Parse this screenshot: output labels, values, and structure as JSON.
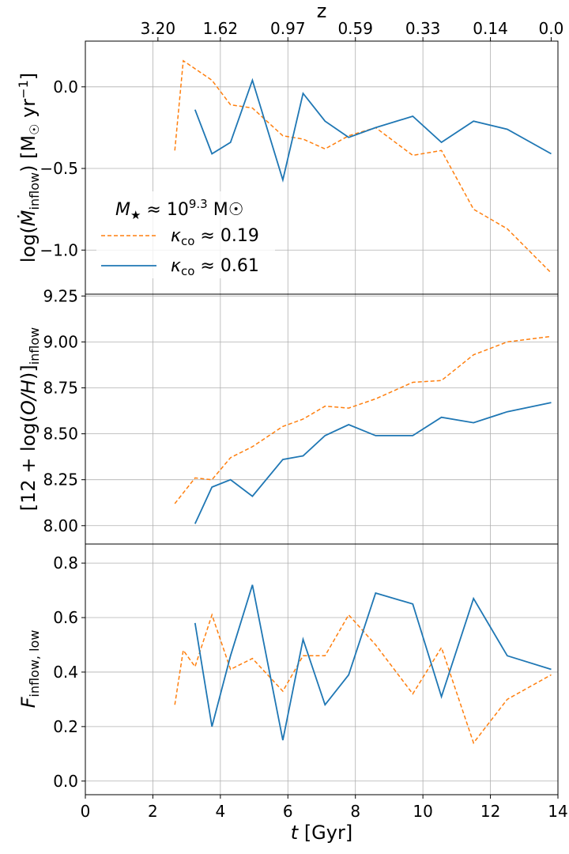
{
  "figure": {
    "top_axis_label": "z",
    "top_axis_ticks": [
      {
        "t": 2.15,
        "label": "3.20"
      },
      {
        "t": 4.0,
        "label": "1.62"
      },
      {
        "t": 6.0,
        "label": "0.97"
      },
      {
        "t": 8.0,
        "label": "0.59"
      },
      {
        "t": 10.0,
        "label": "0.33"
      },
      {
        "t": 12.0,
        "label": "0.14"
      },
      {
        "t": 13.8,
        "label": "0.0"
      }
    ],
    "xlabel_italic": "t",
    "xlabel_rest": " [Gyr]",
    "legend": {
      "title": "M★ ≈ 10^9.3 M☉",
      "title_main": "M",
      "title_sub": "★",
      "title_mid": " ≈ 10",
      "title_sup": "9.3",
      "title_end": " M☉",
      "entry1": "κco ≈ 0.19",
      "entry2": "κco ≈ 0.61",
      "entry_sym": "κ",
      "entry_sub": "co",
      "entry1_val": " ≈ 0.19",
      "entry2_val": " ≈ 0.61"
    },
    "ylabels": {
      "top": "log(Ṁinflow) [M☉ yr⁻¹]",
      "mid": "[12 + log(O/H)]inflow",
      "bot": "Finflow, low"
    }
  },
  "colors": {
    "series1": "#ff7f0e",
    "series2": "#1f77b4"
  },
  "chart_data": [
    {
      "type": "line",
      "panel": "top",
      "ylabel": "log(Ṁinflow) [M☉ yr⁻¹]",
      "xlim": [
        0,
        14
      ],
      "ylim": [
        -1.27,
        0.28
      ],
      "yticks": [
        0.0,
        -0.5,
        -1.0
      ],
      "ytick_labels": [
        "0.0",
        "−0.5",
        "−1.0"
      ],
      "series": [
        {
          "name": "κco ≈ 0.19",
          "style": "dashed",
          "x": [
            2.65,
            2.9,
            3.75,
            4.3,
            4.95,
            5.85,
            6.45,
            7.1,
            7.8,
            8.6,
            9.7,
            10.55,
            11.5,
            12.5,
            13.8
          ],
          "y": [
            -0.39,
            0.16,
            0.04,
            -0.11,
            -0.13,
            -0.3,
            -0.32,
            -0.38,
            -0.3,
            -0.25,
            -0.42,
            -0.39,
            -0.75,
            -0.87,
            -1.14
          ]
        },
        {
          "name": "κco ≈ 0.61",
          "style": "solid",
          "x": [
            3.25,
            3.75,
            4.3,
            4.95,
            5.85,
            6.45,
            7.1,
            7.8,
            8.6,
            9.7,
            10.55,
            11.5,
            12.5,
            13.8
          ],
          "y": [
            -0.14,
            -0.41,
            -0.34,
            0.04,
            -0.57,
            -0.04,
            -0.21,
            -0.31,
            -0.25,
            -0.18,
            -0.34,
            -0.21,
            -0.26,
            -0.41
          ]
        }
      ]
    },
    {
      "type": "line",
      "panel": "middle",
      "ylabel": "[12 + log(O/H)]inflow",
      "xlim": [
        0,
        14
      ],
      "ylim": [
        7.9,
        9.26
      ],
      "yticks": [
        8.0,
        8.25,
        8.5,
        8.75,
        9.0,
        9.25
      ],
      "ytick_labels": [
        "8.00",
        "8.25",
        "8.50",
        "8.75",
        "9.00",
        "9.25"
      ],
      "series": [
        {
          "name": "κco ≈ 0.19",
          "style": "dashed",
          "x": [
            2.65,
            3.25,
            3.75,
            4.3,
            4.95,
            5.85,
            6.45,
            7.1,
            7.8,
            8.6,
            9.7,
            10.55,
            11.5,
            12.5,
            13.8
          ],
          "y": [
            8.12,
            8.26,
            8.25,
            8.37,
            8.43,
            8.54,
            8.58,
            8.65,
            8.64,
            8.69,
            8.78,
            8.79,
            8.93,
            9.0,
            9.03
          ]
        },
        {
          "name": "κco ≈ 0.61",
          "style": "solid",
          "x": [
            3.25,
            3.75,
            4.3,
            4.95,
            5.85,
            6.45,
            7.1,
            7.8,
            8.6,
            9.7,
            10.55,
            11.5,
            12.5,
            13.8
          ],
          "y": [
            8.01,
            8.21,
            8.25,
            8.16,
            8.36,
            8.38,
            8.49,
            8.55,
            8.49,
            8.49,
            8.59,
            8.56,
            8.62,
            8.67
          ]
        }
      ]
    },
    {
      "type": "line",
      "panel": "bottom",
      "ylabel": "Finflow, low",
      "xlabel": "t [Gyr]",
      "xlim": [
        0,
        14
      ],
      "ylim": [
        -0.05,
        0.87
      ],
      "yticks": [
        0.0,
        0.2,
        0.4,
        0.6,
        0.8
      ],
      "ytick_labels": [
        "0.0",
        "0.2",
        "0.4",
        "0.6",
        "0.8"
      ],
      "xticks": [
        0,
        2,
        4,
        6,
        8,
        10,
        12,
        14
      ],
      "xtick_labels": [
        "0",
        "2",
        "4",
        "6",
        "8",
        "10",
        "12",
        "14"
      ],
      "series": [
        {
          "name": "κco ≈ 0.19",
          "style": "dashed",
          "x": [
            2.65,
            2.9,
            3.25,
            3.75,
            4.3,
            4.95,
            5.85,
            6.45,
            7.1,
            7.8,
            8.6,
            9.7,
            10.55,
            11.5,
            12.5,
            13.8
          ],
          "y": [
            0.28,
            0.48,
            0.42,
            0.61,
            0.41,
            0.45,
            0.33,
            0.46,
            0.46,
            0.61,
            0.5,
            0.32,
            0.49,
            0.14,
            0.3,
            0.39
          ]
        },
        {
          "name": "κco ≈ 0.61",
          "style": "solid",
          "x": [
            3.25,
            3.75,
            4.3,
            4.95,
            5.85,
            6.45,
            7.1,
            7.8,
            8.6,
            9.7,
            10.55,
            11.5,
            12.5,
            13.8
          ],
          "y": [
            0.58,
            0.2,
            0.46,
            0.72,
            0.15,
            0.52,
            0.28,
            0.39,
            0.69,
            0.65,
            0.31,
            0.67,
            0.46,
            0.41
          ]
        }
      ]
    }
  ]
}
